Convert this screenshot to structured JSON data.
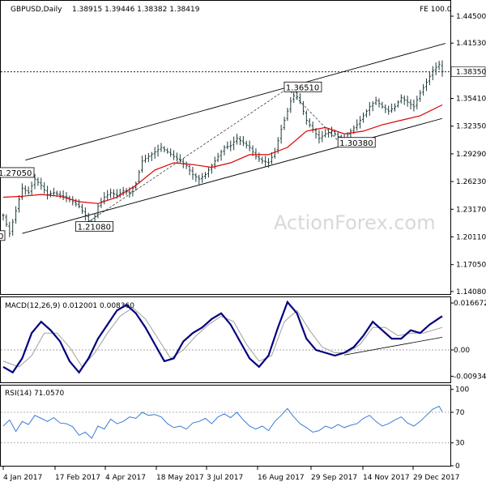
{
  "header": {
    "symbol": "GBPUSD,Daily",
    "ohlc": "1.38915 1.39446 1.38382 1.38419",
    "fe_label": "FE 100.0"
  },
  "watermark": "ActionForex.com",
  "colors": {
    "candles": "#1e3a3a",
    "ma": "#dd0000",
    "macd": "#00007f",
    "signal": "#a0a0a0",
    "rsi": "#3a7ad6",
    "trend": "#000000",
    "grid": "#c8c8c8"
  },
  "chart_data": [
    {
      "type": "candlestick",
      "title": "GBPUSD,Daily",
      "ylim": [
        1.138,
        1.462
      ],
      "y_ticks": [
        "1.44500",
        "1.41530",
        "1.38350",
        "1.35410",
        "1.32350",
        "1.29290",
        "1.26230",
        "1.23170",
        "1.20110",
        "1.17050",
        "1.14080"
      ],
      "current_price_label": "1.38350",
      "current_price": 1.3835,
      "x_labels": [
        "4 Jan 2017",
        "17 Feb 2017",
        "4 Apr 2017",
        "18 May 2017",
        "3 Jul 2017",
        "16 Aug 2017",
        "29 Sep 2017",
        "14 Nov 2017",
        "29 Dec 2017"
      ],
      "price_path": [
        [
          0,
          1.225
        ],
        [
          2,
          1.205
        ],
        [
          4,
          1.23
        ],
        [
          6,
          1.255
        ],
        [
          8,
          1.25
        ],
        [
          10,
          1.265
        ],
        [
          12,
          1.258
        ],
        [
          14,
          1.248
        ],
        [
          16,
          1.25
        ],
        [
          18,
          1.247
        ],
        [
          20,
          1.245
        ],
        [
          22,
          1.24
        ],
        [
          24,
          1.235
        ],
        [
          26,
          1.225
        ],
        [
          28,
          1.212
        ],
        [
          30,
          1.235
        ],
        [
          32,
          1.245
        ],
        [
          34,
          1.25
        ],
        [
          36,
          1.247
        ],
        [
          38,
          1.252
        ],
        [
          40,
          1.25
        ],
        [
          42,
          1.26
        ],
        [
          44,
          1.285
        ],
        [
          46,
          1.29
        ],
        [
          48,
          1.295
        ],
        [
          50,
          1.3
        ],
        [
          52,
          1.295
        ],
        [
          54,
          1.29
        ],
        [
          56,
          1.285
        ],
        [
          58,
          1.28
        ],
        [
          60,
          1.27
        ],
        [
          62,
          1.265
        ],
        [
          64,
          1.27
        ],
        [
          66,
          1.28
        ],
        [
          68,
          1.29
        ],
        [
          70,
          1.3
        ],
        [
          72,
          1.302
        ],
        [
          74,
          1.31
        ],
        [
          76,
          1.305
        ],
        [
          78,
          1.3
        ],
        [
          80,
          1.29
        ],
        [
          82,
          1.285
        ],
        [
          84,
          1.283
        ],
        [
          86,
          1.295
        ],
        [
          88,
          1.32
        ],
        [
          90,
          1.34
        ],
        [
          92,
          1.362
        ],
        [
          94,
          1.35
        ],
        [
          96,
          1.33
        ],
        [
          98,
          1.32
        ],
        [
          100,
          1.31
        ],
        [
          102,
          1.315
        ],
        [
          104,
          1.318
        ],
        [
          106,
          1.312
        ],
        [
          108,
          1.31
        ],
        [
          110,
          1.318
        ],
        [
          112,
          1.325
        ],
        [
          114,
          1.335
        ],
        [
          116,
          1.345
        ],
        [
          118,
          1.352
        ],
        [
          120,
          1.345
        ],
        [
          122,
          1.34
        ],
        [
          124,
          1.345
        ],
        [
          126,
          1.355
        ],
        [
          128,
          1.35
        ],
        [
          130,
          1.345
        ],
        [
          132,
          1.36
        ],
        [
          134,
          1.372
        ],
        [
          136,
          1.385
        ],
        [
          138,
          1.392
        ],
        [
          139,
          1.384
        ]
      ],
      "ma_path": [
        [
          0,
          1.245
        ],
        [
          6,
          1.246
        ],
        [
          12,
          1.248
        ],
        [
          18,
          1.246
        ],
        [
          24,
          1.24
        ],
        [
          30,
          1.238
        ],
        [
          36,
          1.245
        ],
        [
          42,
          1.258
        ],
        [
          48,
          1.275
        ],
        [
          54,
          1.283
        ],
        [
          60,
          1.281
        ],
        [
          66,
          1.278
        ],
        [
          72,
          1.283
        ],
        [
          78,
          1.292
        ],
        [
          84,
          1.292
        ],
        [
          90,
          1.3
        ],
        [
          96,
          1.318
        ],
        [
          102,
          1.322
        ],
        [
          108,
          1.315
        ],
        [
          114,
          1.318
        ],
        [
          120,
          1.325
        ],
        [
          126,
          1.33
        ],
        [
          132,
          1.335
        ],
        [
          139,
          1.347
        ]
      ],
      "labels": [
        {
          "text": "1.27050",
          "x": 0,
          "y": 1.2705
        },
        {
          "text": "1.21080",
          "x": 24,
          "y": 1.2108
        },
        {
          "text": "1.36510",
          "x": 90,
          "y": 1.3651
        },
        {
          "text": "1.30380",
          "x": 107,
          "y": 1.3038
        },
        {
          "text": "0",
          "x": 0,
          "y": 1.2008
        }
      ]
    },
    {
      "type": "line",
      "title": "MACD(12,26,9) 0.012001 0.008360",
      "ylim": [
        -0.0115,
        0.0187
      ],
      "y_ticks": [
        "0.016672",
        "0.00",
        "-0.009345"
      ],
      "series": [
        {
          "name": "MACD",
          "values": [
            [
              0,
              -0.006
            ],
            [
              3,
              -0.008
            ],
            [
              6,
              -0.003
            ],
            [
              9,
              0.006
            ],
            [
              12,
              0.01
            ],
            [
              15,
              0.007
            ],
            [
              18,
              0.003
            ],
            [
              21,
              -0.004
            ],
            [
              24,
              -0.008
            ],
            [
              27,
              -0.003
            ],
            [
              30,
              0.004
            ],
            [
              33,
              0.009
            ],
            [
              36,
              0.014
            ],
            [
              39,
              0.016
            ],
            [
              42,
              0.013
            ],
            [
              45,
              0.008
            ],
            [
              48,
              0.002
            ],
            [
              51,
              -0.004
            ],
            [
              54,
              -0.003
            ],
            [
              57,
              0.003
            ],
            [
              60,
              0.006
            ],
            [
              63,
              0.008
            ],
            [
              66,
              0.011
            ],
            [
              69,
              0.013
            ],
            [
              72,
              0.009
            ],
            [
              75,
              0.003
            ],
            [
              78,
              -0.003
            ],
            [
              81,
              -0.006
            ],
            [
              84,
              -0.002
            ],
            [
              87,
              0.008
            ],
            [
              90,
              0.017
            ],
            [
              93,
              0.013
            ],
            [
              96,
              0.004
            ],
            [
              99,
              0.0
            ],
            [
              102,
              -0.001
            ],
            [
              105,
              -0.002
            ],
            [
              108,
              -0.001
            ],
            [
              111,
              0.001
            ],
            [
              114,
              0.005
            ],
            [
              117,
              0.01
            ],
            [
              120,
              0.007
            ],
            [
              123,
              0.004
            ],
            [
              126,
              0.004
            ],
            [
              129,
              0.007
            ],
            [
              132,
              0.006
            ],
            [
              135,
              0.009
            ],
            [
              139,
              0.012
            ]
          ]
        },
        {
          "name": "Signal",
          "values": [
            [
              0,
              -0.004
            ],
            [
              5,
              -0.006
            ],
            [
              9,
              -0.002
            ],
            [
              13,
              0.006
            ],
            [
              17,
              0.006
            ],
            [
              21,
              0.001
            ],
            [
              25,
              -0.006
            ],
            [
              29,
              -0.001
            ],
            [
              33,
              0.006
            ],
            [
              37,
              0.012
            ],
            [
              41,
              0.015
            ],
            [
              45,
              0.011
            ],
            [
              49,
              0.004
            ],
            [
              53,
              -0.003
            ],
            [
              57,
              0.0
            ],
            [
              61,
              0.005
            ],
            [
              65,
              0.009
            ],
            [
              69,
              0.012
            ],
            [
              73,
              0.01
            ],
            [
              77,
              0.002
            ],
            [
              81,
              -0.004
            ],
            [
              85,
              -0.002
            ],
            [
              89,
              0.01
            ],
            [
              93,
              0.014
            ],
            [
              97,
              0.007
            ],
            [
              101,
              0.001
            ],
            [
              105,
              -0.001
            ],
            [
              109,
              -0.001
            ],
            [
              113,
              0.002
            ],
            [
              117,
              0.008
            ],
            [
              121,
              0.008
            ],
            [
              125,
              0.005
            ],
            [
              129,
              0.006
            ],
            [
              133,
              0.006
            ],
            [
              139,
              0.008
            ]
          ]
        }
      ],
      "trendline": [
        [
          108,
          -0.0018
        ],
        [
          139,
          0.0045
        ]
      ]
    },
    {
      "type": "line",
      "title": "RSI(14) 71.0570",
      "ylim": [
        0,
        105
      ],
      "y_ticks": [
        "100",
        "70",
        "30",
        "0"
      ],
      "levels": [
        70,
        30
      ],
      "series": [
        {
          "name": "RSI",
          "values": [
            [
              0,
              52
            ],
            [
              2,
              60
            ],
            [
              4,
              45
            ],
            [
              6,
              58
            ],
            [
              8,
              54
            ],
            [
              10,
              66
            ],
            [
              12,
              62
            ],
            [
              14,
              58
            ],
            [
              16,
              63
            ],
            [
              18,
              56
            ],
            [
              20,
              55
            ],
            [
              22,
              51
            ],
            [
              24,
              40
            ],
            [
              26,
              44
            ],
            [
              28,
              36
            ],
            [
              30,
              52
            ],
            [
              32,
              48
            ],
            [
              34,
              61
            ],
            [
              36,
              55
            ],
            [
              38,
              58
            ],
            [
              40,
              64
            ],
            [
              42,
              62
            ],
            [
              44,
              70
            ],
            [
              46,
              66
            ],
            [
              48,
              67
            ],
            [
              50,
              64
            ],
            [
              52,
              55
            ],
            [
              54,
              50
            ],
            [
              56,
              52
            ],
            [
              58,
              48
            ],
            [
              60,
              56
            ],
            [
              62,
              58
            ],
            [
              64,
              62
            ],
            [
              66,
              55
            ],
            [
              68,
              64
            ],
            [
              70,
              68
            ],
            [
              72,
              63
            ],
            [
              74,
              70
            ],
            [
              76,
              60
            ],
            [
              78,
              52
            ],
            [
              80,
              48
            ],
            [
              82,
              52
            ],
            [
              84,
              46
            ],
            [
              86,
              58
            ],
            [
              88,
              66
            ],
            [
              90,
              75
            ],
            [
              92,
              64
            ],
            [
              94,
              55
            ],
            [
              96,
              50
            ],
            [
              98,
              44
            ],
            [
              100,
              46
            ],
            [
              102,
              52
            ],
            [
              104,
              49
            ],
            [
              106,
              54
            ],
            [
              108,
              50
            ],
            [
              110,
              53
            ],
            [
              112,
              55
            ],
            [
              114,
              62
            ],
            [
              116,
              66
            ],
            [
              118,
              58
            ],
            [
              120,
              52
            ],
            [
              122,
              55
            ],
            [
              124,
              60
            ],
            [
              126,
              64
            ],
            [
              128,
              56
            ],
            [
              130,
              52
            ],
            [
              132,
              58
            ],
            [
              134,
              66
            ],
            [
              136,
              74
            ],
            [
              138,
              78
            ],
            [
              139,
              71
            ]
          ]
        }
      ]
    }
  ],
  "channel_lines": [
    {
      "from": [
        7,
        1.286
      ],
      "to": [
        140,
        1.415
      ]
    },
    {
      "from": [
        6,
        1.205
      ],
      "to": [
        139,
        1.332
      ]
    }
  ]
}
